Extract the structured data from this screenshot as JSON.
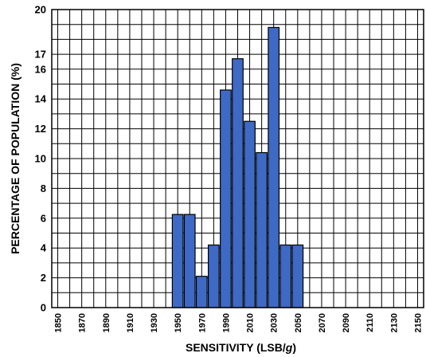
{
  "chart_data": {
    "type": "bar",
    "xlabel_prefix": "SENSITIVITY (LSB/",
    "xlabel_var": "g",
    "xlabel_suffix": ")",
    "ylabel": "PERCENTAGE OF POPULATION (%)",
    "xlim": [
      1845,
      2155
    ],
    "ylim": [
      0,
      20
    ],
    "grid": true,
    "bar_width": 9,
    "y_ticks": [
      {
        "value": 0,
        "label": "0"
      },
      {
        "value": 2,
        "label": "2"
      },
      {
        "value": 4,
        "label": "4"
      },
      {
        "value": 6,
        "label": "6"
      },
      {
        "value": 8,
        "label": "8"
      },
      {
        "value": 10,
        "label": "10"
      },
      {
        "value": 12,
        "label": "12"
      },
      {
        "value": 14,
        "label": "14"
      },
      {
        "value": 16,
        "label": "16"
      },
      {
        "value": 17,
        "label": "17"
      },
      {
        "value": 20,
        "label": "20"
      }
    ],
    "x_ticks": [
      "1850",
      "1870",
      "1890",
      "1910",
      "1930",
      "1950",
      "1970",
      "1990",
      "2010",
      "2030",
      "2050",
      "2070",
      "2090",
      "2110",
      "2130",
      "2150"
    ],
    "bars": [
      {
        "x": 1950,
        "value": 6.25
      },
      {
        "x": 1960,
        "value": 6.25
      },
      {
        "x": 1970,
        "value": 2.1
      },
      {
        "x": 1980,
        "value": 4.2
      },
      {
        "x": 1990,
        "value": 14.6
      },
      {
        "x": 2000,
        "value": 16.7
      },
      {
        "x": 2010,
        "value": 12.5
      },
      {
        "x": 2020,
        "value": 10.4
      },
      {
        "x": 2030,
        "value": 18.8
      },
      {
        "x": 2040,
        "value": 4.2
      },
      {
        "x": 2050,
        "value": 4.2
      }
    ],
    "colors": {
      "bar_fill": "#3e69c5",
      "bar_stroke": "#000000",
      "grid": "#000000"
    }
  }
}
